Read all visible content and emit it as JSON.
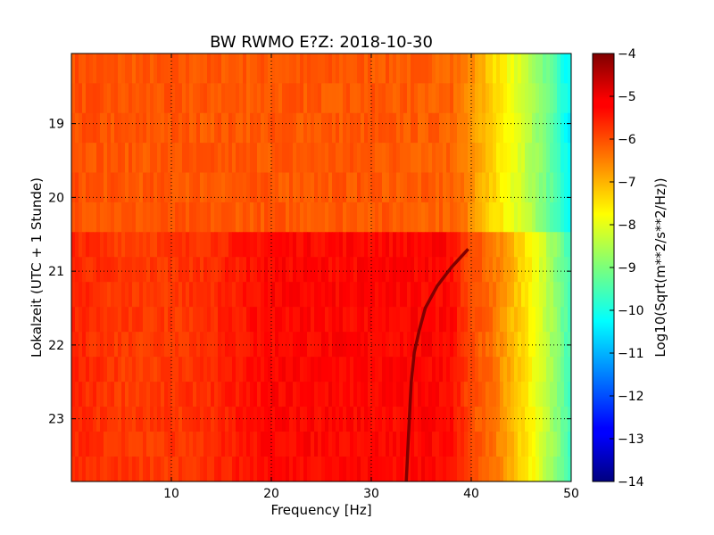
{
  "chart_data": {
    "type": "heatmap",
    "title": "BW RWMO E?Z: 2018-10-30",
    "xlabel": "Frequency [Hz]",
    "ylabel": "Lokalzeit (UTC + 1 Stunde)",
    "xlim": [
      0,
      50
    ],
    "ylim": [
      23.85,
      18.05
    ],
    "x_ticks": [
      10,
      20,
      30,
      40,
      50
    ],
    "x_tick_labels": [
      "10",
      "20",
      "30",
      "40",
      "50"
    ],
    "y_ticks": [
      19,
      20,
      21,
      22,
      23
    ],
    "y_tick_labels": [
      "19",
      "20",
      "21",
      "22",
      "23"
    ],
    "grid": true,
    "colormap": "jet",
    "colorbar": {
      "label": "Log10(Sqrt(m**2/s**2/Hz))",
      "range": [
        -14,
        -4
      ],
      "ticks": [
        -4,
        -5,
        -6,
        -7,
        -8,
        -9,
        -10,
        -11,
        -12,
        -13,
        -14
      ],
      "tick_labels": [
        "−4",
        "−5",
        "−6",
        "−7",
        "−8",
        "−9",
        "−10",
        "−11",
        "−12",
        "−13",
        "−14"
      ]
    },
    "regime_change_time": 20.47,
    "before_change": {
      "frequency_hz": [
        0,
        5,
        10,
        20,
        30,
        38,
        40,
        42,
        44,
        46,
        48,
        50
      ],
      "level": [
        -6.0,
        -6.1,
        -6.1,
        -6.1,
        -6.1,
        -6.2,
        -6.6,
        -7.3,
        -7.9,
        -8.5,
        -9.3,
        -10.4
      ]
    },
    "after_change": {
      "frequency_hz": [
        0,
        5,
        10,
        15,
        20,
        30,
        38,
        40,
        42,
        44,
        46,
        48,
        50
      ],
      "level": [
        -5.6,
        -5.8,
        -5.8,
        -5.6,
        -5.3,
        -5.3,
        -5.3,
        -6.0,
        -6.3,
        -7.0,
        -7.7,
        -8.6,
        -9.7
      ]
    },
    "narrowband_line": {
      "level": -4.0,
      "points": [
        {
          "time": 20.7,
          "frequency_hz": 39.7
        },
        {
          "time": 20.95,
          "frequency_hz": 38.0
        },
        {
          "time": 21.2,
          "frequency_hz": 36.6
        },
        {
          "time": 21.5,
          "frequency_hz": 35.4
        },
        {
          "time": 21.8,
          "frequency_hz": 34.8
        },
        {
          "time": 22.1,
          "frequency_hz": 34.3
        },
        {
          "time": 22.5,
          "frequency_hz": 34.0
        },
        {
          "time": 23.0,
          "frequency_hz": 33.8
        },
        {
          "time": 23.85,
          "frequency_hz": 33.5
        }
      ]
    }
  }
}
